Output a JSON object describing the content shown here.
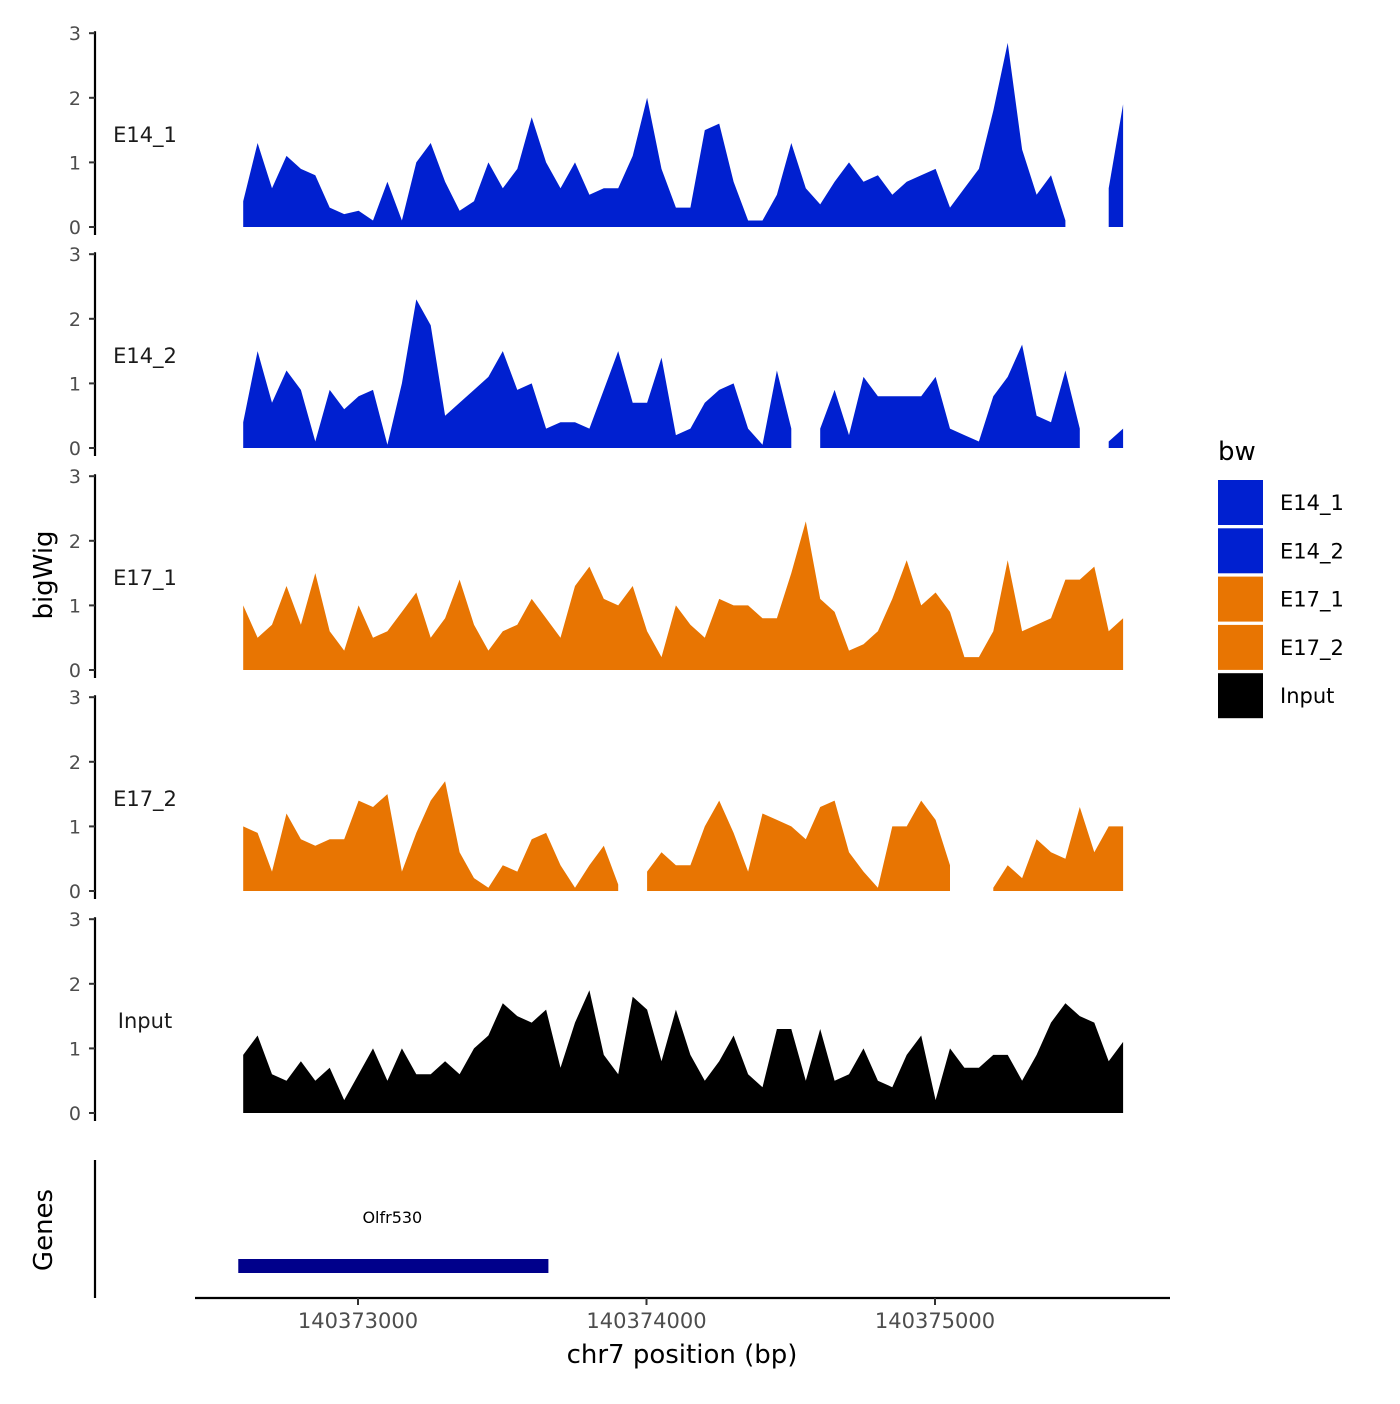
{
  "chart_data": {
    "type": "area",
    "title": "",
    "xlabel": "chr7 position (bp)",
    "ylabel": "bigWig",
    "ylim": [
      0,
      3
    ],
    "yticks": [
      "0",
      "1",
      "2",
      "3"
    ],
    "xticks": [
      {
        "value": 140373000,
        "label": "140373000"
      },
      {
        "value": 140374000,
        "label": "140374000"
      },
      {
        "value": 140375000,
        "label": "140375000"
      }
    ],
    "x_start": 140372602,
    "x_step": 50,
    "legend": {
      "title": "bw",
      "placement": "right"
    },
    "series": [
      {
        "name": "E14_1",
        "color": "#0020D0",
        "values": [
          0.4,
          1.3,
          0.6,
          1.1,
          0.9,
          0.8,
          0.3,
          0.2,
          0.25,
          0.1,
          0.7,
          0.1,
          1.0,
          1.3,
          0.7,
          0.25,
          0.4,
          1.0,
          0.6,
          0.9,
          1.7,
          1.0,
          0.6,
          1.0,
          0.5,
          0.6,
          0.6,
          1.1,
          2.0,
          0.9,
          0.3,
          0.3,
          1.5,
          1.6,
          0.7,
          0.1,
          0.1,
          0.5,
          1.3,
          0.6,
          0.35,
          0.7,
          1.0,
          0.7,
          0.8,
          0.5,
          0.7,
          0.8,
          0.9,
          0.3,
          0.6,
          0.9,
          1.8,
          2.85,
          1.2,
          0.5,
          0.8,
          0.1,
          null,
          null,
          0.6,
          1.9
        ]
      },
      {
        "name": "E14_2",
        "color": "#0020D0",
        "values": [
          0.4,
          1.5,
          0.7,
          1.2,
          0.9,
          0.1,
          0.9,
          0.6,
          0.8,
          0.9,
          0.05,
          1.0,
          2.3,
          1.9,
          0.5,
          0.7,
          0.9,
          1.1,
          1.5,
          0.9,
          1.0,
          0.3,
          0.4,
          0.4,
          0.3,
          0.9,
          1.5,
          0.7,
          0.7,
          1.4,
          0.2,
          0.3,
          0.7,
          0.9,
          1.0,
          0.3,
          0.05,
          1.2,
          0.3,
          null,
          0.3,
          0.9,
          0.2,
          1.1,
          0.8,
          0.8,
          0.8,
          0.8,
          1.1,
          0.3,
          0.2,
          0.1,
          0.8,
          1.1,
          1.6,
          0.5,
          0.4,
          1.2,
          0.3,
          null,
          0.1,
          0.3
        ]
      },
      {
        "name": "E17_1",
        "color": "#E87502",
        "values": [
          1.0,
          0.5,
          0.7,
          1.3,
          0.7,
          1.5,
          0.6,
          0.3,
          1.0,
          0.5,
          0.6,
          0.9,
          1.2,
          0.5,
          0.8,
          1.4,
          0.7,
          0.3,
          0.6,
          0.7,
          1.1,
          0.8,
          0.5,
          1.3,
          1.6,
          1.1,
          1.0,
          1.3,
          0.6,
          0.2,
          1.0,
          0.7,
          0.5,
          1.1,
          1.0,
          1.0,
          0.8,
          0.8,
          1.5,
          2.3,
          1.1,
          0.9,
          0.3,
          0.4,
          0.6,
          1.1,
          1.7,
          1.0,
          1.2,
          0.9,
          0.2,
          0.2,
          0.6,
          1.7,
          0.6,
          0.7,
          0.8,
          1.4,
          1.4,
          1.6,
          0.6,
          0.8
        ]
      },
      {
        "name": "E17_2",
        "color": "#E87502",
        "values": [
          1.0,
          0.9,
          0.3,
          1.2,
          0.8,
          0.7,
          0.8,
          0.8,
          1.4,
          1.3,
          1.5,
          0.3,
          0.9,
          1.4,
          1.7,
          0.6,
          0.2,
          0.05,
          0.4,
          0.3,
          0.8,
          0.9,
          0.4,
          0.05,
          0.4,
          0.7,
          0.1,
          null,
          0.3,
          0.6,
          0.4,
          0.4,
          1.0,
          1.4,
          0.9,
          0.3,
          1.2,
          1.1,
          1.0,
          0.8,
          1.3,
          1.4,
          0.6,
          0.3,
          0.05,
          1.0,
          1.0,
          1.4,
          1.1,
          0.4,
          null,
          null,
          0.05,
          0.4,
          0.2,
          0.8,
          0.6,
          0.5,
          1.3,
          0.6,
          1.0,
          1.0
        ]
      },
      {
        "name": "Input",
        "color": "#000000",
        "values": [
          0.9,
          1.2,
          0.6,
          0.5,
          0.8,
          0.5,
          0.7,
          0.2,
          0.6,
          1.0,
          0.5,
          1.0,
          0.6,
          0.6,
          0.8,
          0.6,
          1.0,
          1.2,
          1.7,
          1.5,
          1.4,
          1.6,
          0.7,
          1.4,
          1.9,
          0.9,
          0.6,
          1.8,
          1.6,
          0.8,
          1.6,
          0.9,
          0.5,
          0.8,
          1.2,
          0.6,
          0.4,
          1.3,
          1.3,
          0.5,
          1.3,
          0.5,
          0.6,
          1.0,
          0.5,
          0.4,
          0.9,
          1.2,
          0.2,
          1.0,
          0.7,
          0.7,
          0.9,
          0.9,
          0.5,
          0.9,
          1.4,
          1.7,
          1.5,
          1.4,
          0.8,
          1.1
        ]
      }
    ],
    "genes_panel": {
      "label": "Genes",
      "genes": [
        {
          "name": "Olfr530",
          "start": 140372585,
          "end": 140373660,
          "color": "#00008B"
        }
      ]
    }
  }
}
